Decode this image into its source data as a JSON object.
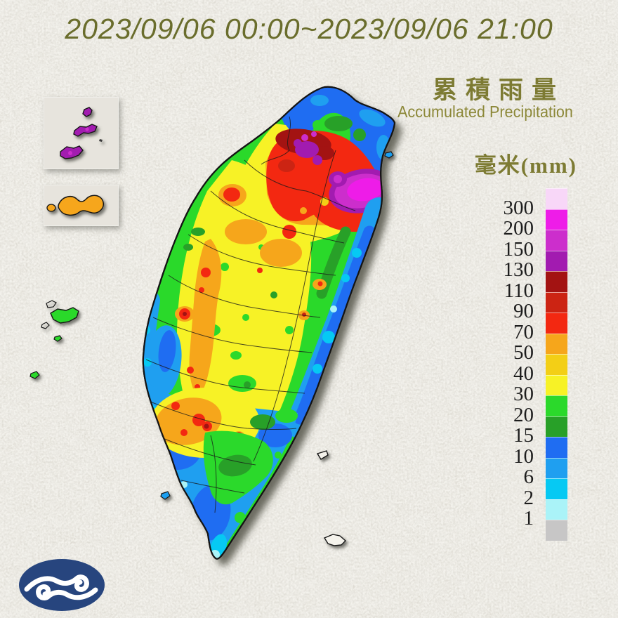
{
  "title": {
    "text": "2023/09/06 00:00~2023/09/06 21:00",
    "color": "#6a6d2c"
  },
  "legend": {
    "title_zh": "累積雨量",
    "title_en": "Accumulated Precipitation",
    "unit_label": "毫米(mm)",
    "heading_color": "#7d7b33",
    "levels": [
      {
        "color": "#f8d7f8",
        "label": "300"
      },
      {
        "color": "#ee1ce8",
        "label": "200"
      },
      {
        "color": "#cc2ecc",
        "label": "150"
      },
      {
        "color": "#a21bb0",
        "label": "130"
      },
      {
        "color": "#a31312",
        "label": "110"
      },
      {
        "color": "#cc2413",
        "label": "90"
      },
      {
        "color": "#f32811",
        "label": "70"
      },
      {
        "color": "#f6a61b",
        "label": "50"
      },
      {
        "color": "#f3cf16",
        "label": "40"
      },
      {
        "color": "#f7f226",
        "label": "30"
      },
      {
        "color": "#2bd92b",
        "label": "20"
      },
      {
        "color": "#28a028",
        "label": "15"
      },
      {
        "color": "#1f6df2",
        "label": "10"
      },
      {
        "color": "#1f9ff0",
        "label": "6"
      },
      {
        "color": "#06c9f3",
        "label": "2"
      },
      {
        "color": "#aaf3f8",
        "label": "1"
      },
      {
        "color": "#c7c6c6",
        "label": null
      }
    ]
  },
  "map_colors": {
    "matsu_inset_islands": "#a21bb0",
    "kinmen_inset_island": "#f6a61b",
    "penghu_islands": "#2bd92b",
    "background_paper": "#dbd8cf"
  },
  "logo": {
    "bg": "#27457e",
    "cloud": "#ffffff"
  }
}
